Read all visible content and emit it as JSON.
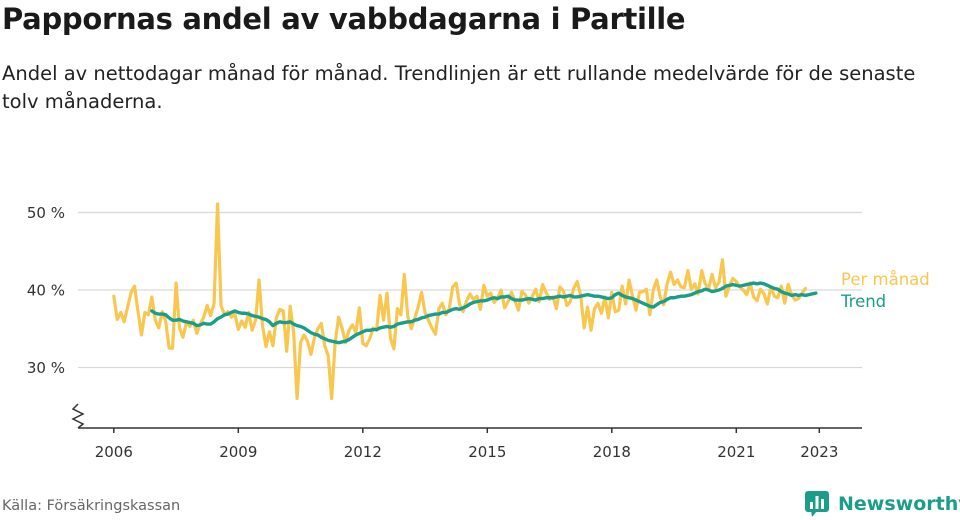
{
  "header": {
    "title": "Pappornas andel av vabbdagarna i Partille",
    "subtitle": "Andel av nettodagar månad för månad. Trendlinjen är ett rullande medelvärde för de senaste tolv månaderna."
  },
  "footer": {
    "source": "Källa: Försäkringskassan",
    "brand": "Newsworthy"
  },
  "colors": {
    "monthly": "#f9c74f",
    "trend": "#1a9e8a",
    "grid": "#d9d9d9",
    "axis": "#333333",
    "brand": "#1a9e8a"
  },
  "icons": [
    "axis-break-icon",
    "newsworthy-logo-icon"
  ],
  "chart_data": {
    "type": "line",
    "x_start": "2006-01",
    "x_end": "2023-05",
    "x_ticks": [
      {
        "value": "2006-01",
        "label": "2006"
      },
      {
        "value": "2009-01",
        "label": "2009"
      },
      {
        "value": "2012-01",
        "label": "2012"
      },
      {
        "value": "2015-01",
        "label": "2015"
      },
      {
        "value": "2018-01",
        "label": "2018"
      },
      {
        "value": "2021-01",
        "label": "2021"
      },
      {
        "value": "2023-01",
        "label": "2023"
      }
    ],
    "y_ticks": [
      {
        "value": 30,
        "label": "30 %"
      },
      {
        "value": 40,
        "label": "40 %"
      },
      {
        "value": 50,
        "label": "50 %"
      }
    ],
    "ylim": [
      21,
      52
    ],
    "grid": true,
    "axis_break": true,
    "legend": "end-labels",
    "series": [
      {
        "name": "Per månad",
        "x_start": "2006-01",
        "values": [
          39.2,
          36.2,
          37.1,
          35.9,
          37.8,
          39.7,
          40.5,
          37.2,
          34.2,
          37.1,
          36.8,
          39.1,
          36.1,
          35.1,
          37.2,
          36.0,
          32.5,
          32.5,
          40.9,
          35.1,
          33.9,
          35.8,
          35.3,
          36.1,
          34.4,
          35.6,
          36.5,
          38.0,
          36.7,
          38.3,
          51.1,
          38.0,
          36.8,
          37.2,
          36.5,
          36.9,
          34.9,
          36.0,
          35.2,
          37.1,
          34.8,
          36.1,
          41.3,
          35.4,
          32.7,
          34.6,
          32.8,
          36.4,
          37.5,
          37.3,
          32.1,
          37.9,
          34.6,
          26.0,
          33.2,
          34.2,
          33.4,
          31.7,
          33.8,
          35.0,
          35.7,
          32.8,
          31.5,
          26.0,
          33.2,
          36.5,
          35.1,
          33.2,
          34.8,
          35.5,
          34.5,
          37.7,
          33.1,
          32.8,
          33.7,
          35.1,
          34.8,
          39.3,
          36.1,
          39.6,
          33.8,
          32.4,
          37.6,
          36.8,
          42.0,
          36.6,
          35.0,
          36.3,
          37.8,
          39.7,
          37.1,
          36.1,
          35.1,
          34.3,
          37.6,
          38.3,
          36.8,
          37.6,
          40.4,
          40.9,
          38.1,
          37.2,
          38.6,
          39.5,
          38.8,
          39.2,
          37.5,
          40.6,
          39.2,
          39.6,
          38.4,
          39.0,
          40.0,
          37.7,
          38.5,
          39.7,
          38.6,
          37.4,
          39.8,
          39.4,
          38.3,
          39.2,
          40.1,
          38.5,
          40.7,
          39.7,
          38.8,
          39.1,
          37.6,
          40.4,
          39.9,
          38.0,
          38.5,
          40.2,
          41.1,
          39.3,
          35.1,
          37.8,
          34.8,
          37.6,
          38.3,
          37.0,
          39.1,
          36.4,
          39.7,
          37.2,
          37.4,
          40.5,
          38.2,
          41.3,
          39.2,
          37.4,
          39.7,
          39.8,
          40.1,
          36.8,
          40.0,
          41.3,
          39.1,
          38.1,
          40.8,
          42.3,
          40.7,
          41.3,
          40.4,
          40.3,
          42.5,
          40.1,
          40.8,
          39.5,
          42.5,
          40.8,
          40.2,
          42.0,
          40.3,
          41.0,
          43.9,
          39.2,
          40.5,
          41.5,
          41.1,
          40.4,
          40.0,
          39.4,
          40.9,
          39.1,
          38.6,
          40.1,
          39.5,
          38.2,
          40.4,
          39.2,
          39.0,
          40.5,
          38.3,
          40.7,
          39.4,
          38.7,
          38.9,
          39.6,
          40.2
        ]
      },
      {
        "name": "Trend",
        "x_start": "2006-12",
        "values": [
          37.3,
          37.0,
          36.9,
          36.9,
          36.8,
          36.4,
          36.1,
          36.1,
          36.2,
          36.0,
          35.9,
          35.8,
          35.7,
          35.4,
          35.5,
          35.7,
          35.6,
          35.6,
          35.9,
          36.3,
          36.5,
          36.8,
          36.9,
          37.1,
          37.3,
          37.1,
          37.0,
          37.0,
          36.9,
          36.7,
          36.6,
          36.5,
          36.3,
          36.2,
          35.9,
          35.4,
          35.7,
          35.9,
          35.8,
          35.8,
          35.9,
          35.6,
          35.4,
          35.3,
          35.1,
          34.8,
          34.5,
          34.3,
          34.2,
          33.9,
          33.7,
          33.5,
          33.4,
          33.3,
          33.2,
          33.3,
          33.4,
          33.6,
          33.9,
          34.2,
          34.4,
          34.6,
          34.8,
          34.8,
          34.9,
          34.9,
          35.1,
          35.2,
          35.3,
          35.2,
          35.3,
          35.6,
          35.7,
          35.8,
          35.9,
          35.9,
          36.1,
          36.2,
          36.4,
          36.5,
          36.7,
          36.8,
          36.9,
          36.9,
          37.1,
          37.1,
          37.3,
          37.5,
          37.6,
          37.5,
          37.7,
          37.9,
          38.2,
          38.4,
          38.5,
          38.6,
          38.6,
          38.7,
          38.9,
          39.0,
          38.9,
          39.1,
          39.1,
          39.2,
          38.9,
          38.7,
          38.7,
          38.7,
          38.8,
          38.9,
          38.8,
          38.7,
          38.9,
          38.9,
          39.0,
          39.0,
          39.0,
          39.1,
          39.2,
          39.1,
          39.2,
          39.3,
          39.1,
          39.1,
          39.2,
          39.3,
          39.4,
          39.3,
          39.2,
          39.2,
          39.1,
          39.0,
          38.9,
          39.0,
          39.4,
          39.6,
          39.3,
          39.1,
          39.0,
          38.9,
          38.7,
          38.5,
          38.3,
          38.1,
          37.9,
          37.8,
          38.1,
          38.4,
          38.5,
          38.8,
          39.0,
          39.0,
          39.1,
          39.2,
          39.2,
          39.3,
          39.4,
          39.6,
          39.8,
          39.9,
          40.1,
          40.0,
          39.8,
          39.9,
          40.0,
          40.2,
          40.5,
          40.6,
          40.7,
          40.6,
          40.5,
          40.6,
          40.7,
          40.8,
          40.9,
          40.8,
          40.9,
          40.8,
          40.6,
          40.4,
          40.2,
          40.1,
          39.8,
          39.6,
          39.5,
          39.3,
          39.4,
          39.3,
          39.4,
          39.3,
          39.4,
          39.5,
          39.6
        ]
      }
    ]
  }
}
